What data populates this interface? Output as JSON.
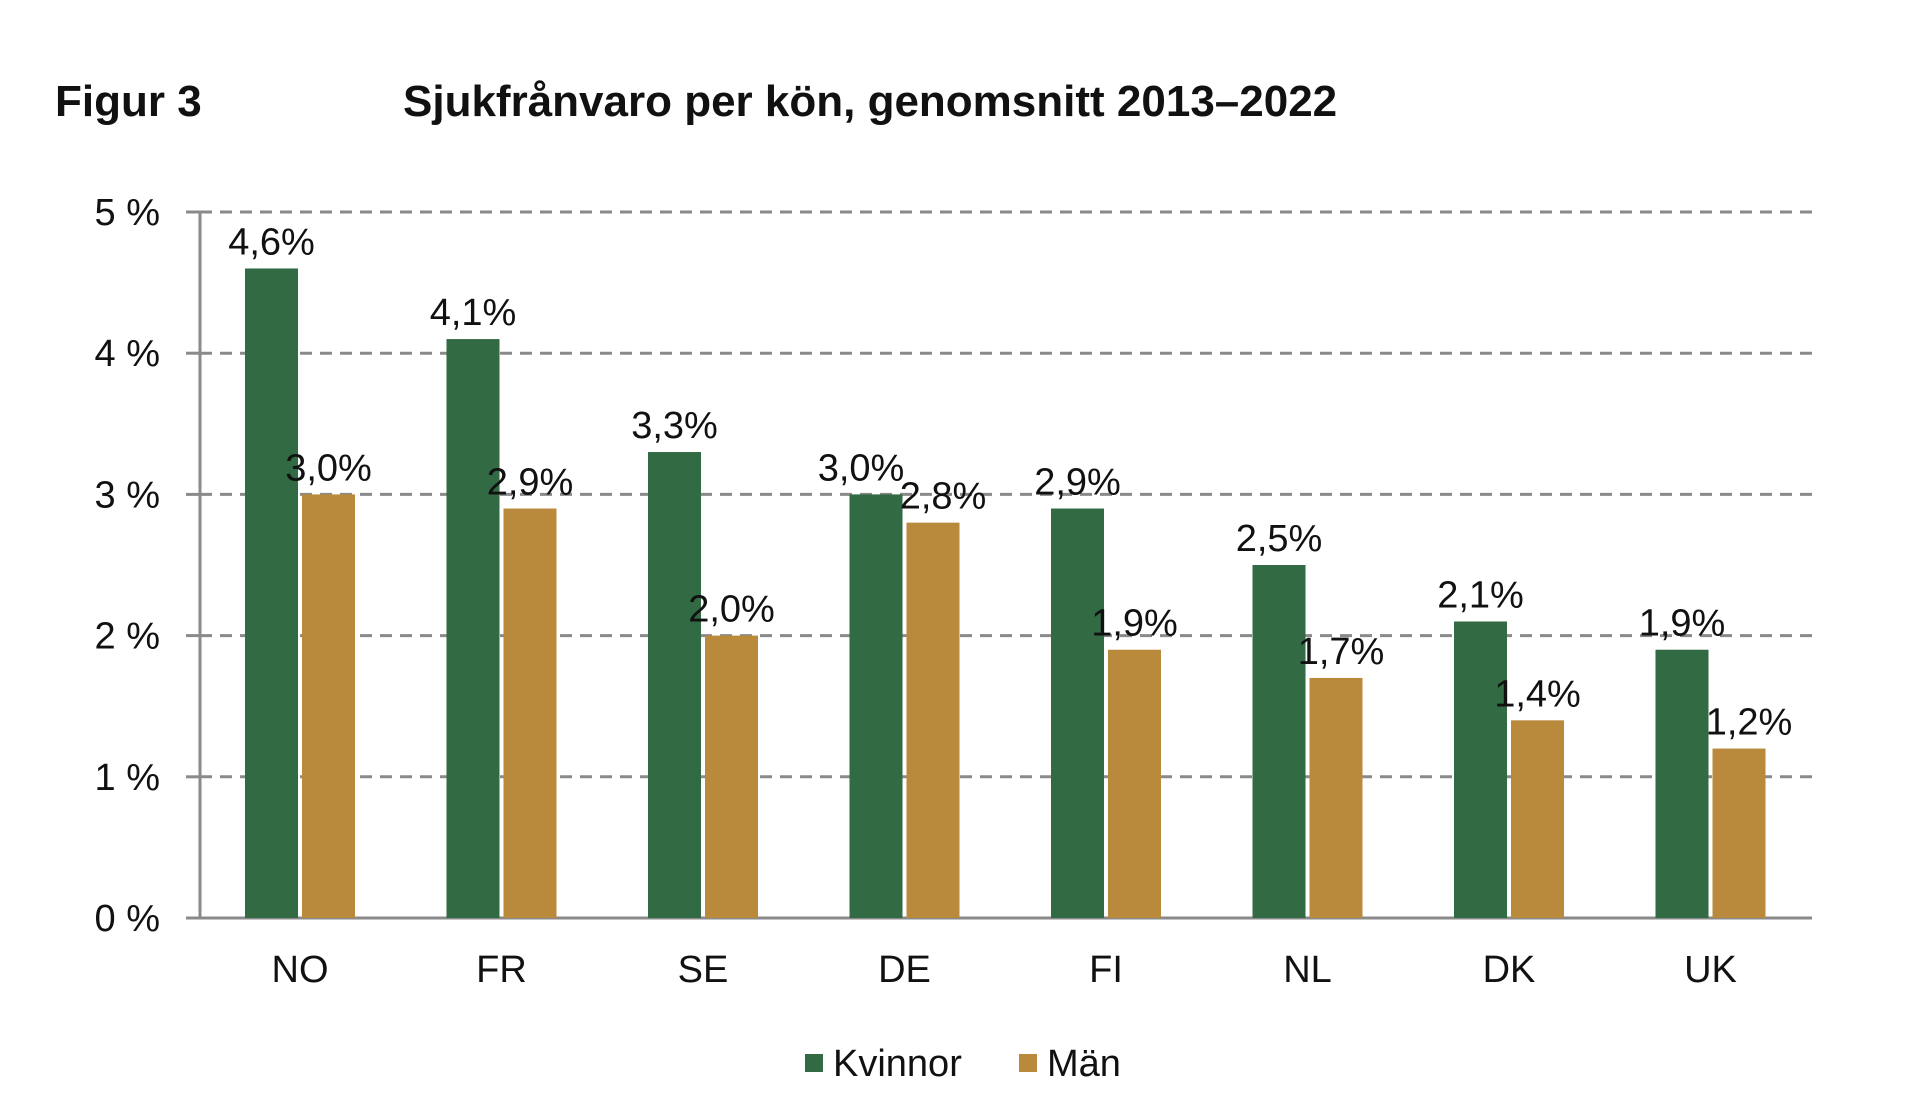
{
  "figure_label": "Figur 3",
  "chart_data": {
    "type": "bar",
    "title": "Sjukfrånvaro per kön, genomsnitt 2013–2022",
    "xlabel": "",
    "ylabel": "",
    "categories": [
      "NO",
      "FR",
      "SE",
      "DE",
      "FI",
      "NL",
      "DK",
      "UK"
    ],
    "series": [
      {
        "name": "Kvinnor",
        "color": "#316a43",
        "values": [
          4.6,
          4.1,
          3.3,
          3.0,
          2.9,
          2.5,
          2.1,
          1.9
        ],
        "labels": [
          "4,6%",
          "4,1%",
          "3,3%",
          "3,0%",
          "2,9%",
          "2,5%",
          "2,1%",
          "1,9%"
        ]
      },
      {
        "name": "Män",
        "color": "#b98a3c",
        "values": [
          3.0,
          2.9,
          2.0,
          2.8,
          1.9,
          1.7,
          1.4,
          1.2
        ],
        "labels": [
          "3,0%",
          "2,9%",
          "2,0%",
          "2,8%",
          "1,9%",
          "1,7%",
          "1,4%",
          "1,2%"
        ]
      }
    ],
    "ylim": [
      0,
      5
    ],
    "yticks": [
      0,
      1,
      2,
      3,
      4,
      5
    ],
    "ytick_labels": [
      "0 %",
      "1 %",
      "2 %",
      "3 %",
      "4 %",
      "5 %"
    ],
    "grid": "horizontal dashed",
    "legend_position": "bottom-center"
  }
}
